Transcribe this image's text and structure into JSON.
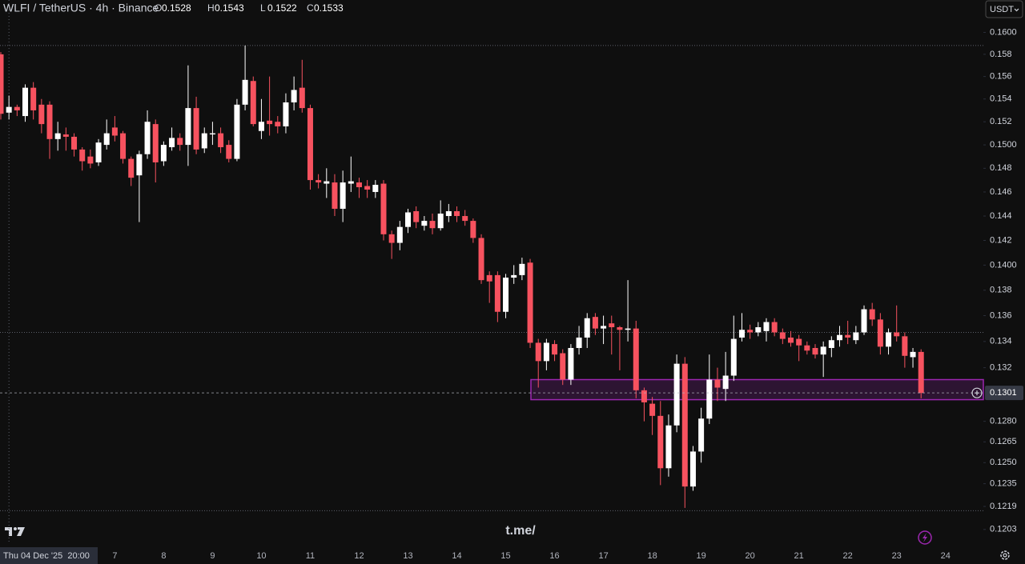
{
  "chart_data": {
    "type": "candlestick",
    "title": "WLFI / TetherUS · 4h · Binance",
    "ohlc_legend": {
      "labels": [
        "O",
        "H",
        "L",
        "C"
      ],
      "values": [
        0.1528,
        0.1543,
        0.1522,
        0.1533
      ]
    },
    "currency_button": "USDT",
    "watermark": "t.me/",
    "log": true,
    "grid": false,
    "up_color": "#ffffff",
    "down_color": "#f7525f",
    "categories": [
      null,
      "Thu 04 Dec '25  20:00",
      null,
      null,
      null,
      null,
      null,
      null,
      null,
      null,
      null,
      null,
      null,
      null,
      "7",
      null,
      null,
      null,
      null,
      null,
      "8",
      null,
      null,
      null,
      null,
      null,
      "9",
      null,
      null,
      null,
      null,
      null,
      "10",
      null,
      null,
      null,
      null,
      null,
      "11",
      null,
      null,
      null,
      null,
      null,
      "12",
      null,
      null,
      null,
      null,
      null,
      "13",
      null,
      null,
      null,
      null,
      null,
      "14",
      null,
      null,
      null,
      null,
      null,
      "15",
      null,
      null,
      null,
      null,
      null,
      "16",
      null,
      null,
      null,
      null,
      null,
      "17",
      null,
      null,
      null,
      null,
      null,
      "18",
      null,
      null,
      null,
      null,
      null,
      "19",
      null,
      null,
      null,
      null,
      null,
      "20",
      null,
      null,
      null,
      null,
      null,
      "21",
      null,
      null,
      null,
      null,
      null,
      "22",
      null,
      null,
      null,
      null,
      null,
      "23",
      null,
      null,
      null,
      null,
      null,
      "24"
    ],
    "open": [
      0.158,
      0.1528,
      0.1533,
      0.1525,
      0.155,
      0.1535,
      0.1535,
      0.1505,
      0.1509,
      0.1507,
      0.1496,
      0.149,
      0.1485,
      0.15,
      0.1515,
      0.151,
      0.1488,
      0.1474,
      0.1492,
      0.1518,
      0.1486,
      0.1498,
      0.1506,
      0.15,
      0.1532,
      0.1497,
      0.1509,
      0.151,
      0.15,
      0.1488,
      0.1535,
      0.1556,
      0.1512,
      0.1521,
      0.152,
      0.1516,
      0.1537,
      0.155,
      0.1532,
      0.147,
      0.1467,
      0.1468,
      0.1446,
      0.1467,
      0.1468,
      0.1465,
      0.146,
      0.1467,
      0.1425,
      0.1418,
      0.1431,
      0.1444,
      0.1432,
      0.1436,
      0.143,
      0.144,
      0.1444,
      0.144,
      0.1436,
      0.1422,
      0.1392,
      0.1392,
      0.1363,
      0.139,
      0.1392,
      0.1402,
      0.1339,
      0.1325,
      0.1338,
      0.1331,
      0.1311,
      0.1335,
      0.1343,
      0.1359,
      0.135,
      0.1354,
      0.1351,
      0.1349,
      0.135,
      0.1303,
      0.1293,
      0.1284,
      0.1246,
      0.1277,
      0.1323,
      0.1233,
      0.1258,
      0.1282,
      0.1311,
      0.1304,
      0.1314,
      0.1343,
      0.1349,
      0.1347,
      0.1348,
      0.1355,
      0.1347,
      0.1343,
      0.1342,
      0.1337,
      0.1335,
      0.133,
      0.1335,
      0.1341,
      0.1345,
      0.1341,
      0.1347,
      0.1365,
      0.1357,
      0.1336,
      0.1347,
      0.1344,
      0.1328,
      0.1332,
      null,
      null,
      null
    ],
    "high": [
      0.1582,
      0.1543,
      0.1535,
      0.1553,
      0.1555,
      0.154,
      0.1538,
      0.152,
      0.1515,
      0.151,
      0.1498,
      0.1496,
      0.1505,
      0.1522,
      0.1525,
      0.1512,
      0.149,
      0.1495,
      0.153,
      0.1522,
      0.1503,
      0.1515,
      0.151,
      0.157,
      0.1542,
      0.1515,
      0.152,
      0.1515,
      0.1504,
      0.154,
      0.1588,
      0.156,
      0.154,
      0.156,
      0.1525,
      0.1545,
      0.156,
      0.1575,
      0.1535,
      0.1475,
      0.148,
      0.1475,
      0.1478,
      0.149,
      0.1472,
      0.147,
      0.147,
      0.147,
      0.1428,
      0.1436,
      0.1446,
      0.1448,
      0.144,
      0.1442,
      0.1453,
      0.145,
      0.1448,
      0.1445,
      0.1438,
      0.1425,
      0.1395,
      0.1395,
      0.1393,
      0.14,
      0.1406,
      0.1405,
      0.1342,
      0.1342,
      0.1341,
      0.1334,
      0.1338,
      0.1352,
      0.1362,
      0.1362,
      0.136,
      0.136,
      0.1352,
      0.1388,
      0.1356,
      0.1305,
      0.1298,
      0.1295,
      0.1285,
      0.133,
      0.1328,
      0.1262,
      0.129,
      0.133,
      0.132,
      0.1332,
      0.136,
      0.1362,
      0.1353,
      0.1355,
      0.1358,
      0.1358,
      0.135,
      0.1348,
      0.1345,
      0.134,
      0.1338,
      0.134,
      0.1344,
      0.1352,
      0.1356,
      0.1352,
      0.1368,
      0.137,
      0.1362,
      0.135,
      0.1368,
      0.1347,
      0.1335,
      0.1334,
      null,
      null,
      null
    ],
    "low": [
      0.1522,
      0.1522,
      0.1525,
      0.152,
      0.1522,
      0.151,
      0.1488,
      0.1495,
      0.1495,
      0.149,
      0.1478,
      0.148,
      0.1482,
      0.1496,
      0.1503,
      0.1484,
      0.1465,
      0.1435,
      0.1488,
      0.1468,
      0.1482,
      0.1495,
      0.1495,
      0.1482,
      0.1492,
      0.1493,
      0.15,
      0.1493,
      0.1485,
      0.1486,
      0.153,
      0.1516,
      0.1505,
      0.1508,
      0.151,
      0.151,
      0.153,
      0.1528,
      0.1462,
      0.1463,
      0.1455,
      0.144,
      0.1435,
      0.146,
      0.1455,
      0.1455,
      0.1455,
      0.142,
      0.1405,
      0.1412,
      0.1426,
      0.143,
      0.1428,
      0.1425,
      0.1428,
      0.1435,
      0.1435,
      0.1432,
      0.1418,
      0.1385,
      0.137,
      0.1355,
      0.1358,
      0.1385,
      0.1388,
      0.1335,
      0.1305,
      0.1318,
      0.1325,
      0.1307,
      0.1307,
      0.133,
      0.1335,
      0.1345,
      0.1338,
      0.133,
      0.1318,
      0.134,
      0.1297,
      0.128,
      0.127,
      0.1234,
      0.124,
      0.1272,
      0.1218,
      0.123,
      0.125,
      0.1278,
      0.1295,
      0.1295,
      0.131,
      0.134,
      0.1342,
      0.1344,
      0.134,
      0.1344,
      0.1338,
      0.1336,
      0.1325,
      0.133,
      0.1327,
      0.1313,
      0.1328,
      0.1336,
      0.1338,
      0.1338,
      0.1345,
      0.1352,
      0.133,
      0.133,
      0.134,
      0.132,
      0.132,
      0.1297,
      null,
      null,
      null
    ],
    "close": [
      0.1527,
      0.1533,
      0.153,
      0.155,
      0.153,
      0.1518,
      0.1505,
      0.151,
      0.1507,
      0.1496,
      0.1486,
      0.1484,
      0.1502,
      0.151,
      0.1508,
      0.1488,
      0.1472,
      0.1492,
      0.152,
      0.1485,
      0.15,
      0.1506,
      0.15,
      0.1532,
      0.1496,
      0.151,
      0.151,
      0.1498,
      0.1488,
      0.1535,
      0.1557,
      0.1518,
      0.152,
      0.1518,
      0.1516,
      0.1537,
      0.1548,
      0.1532,
      0.147,
      0.1468,
      0.1469,
      0.1446,
      0.1468,
      0.1469,
      0.1464,
      0.1462,
      0.1466,
      0.1425,
      0.1418,
      0.1431,
      0.1443,
      0.1435,
      0.1436,
      0.143,
      0.1442,
      0.1444,
      0.144,
      0.1436,
      0.1422,
      0.1388,
      0.1387,
      0.1363,
      0.139,
      0.1392,
      0.1401,
      0.1339,
      0.1325,
      0.1339,
      0.133,
      0.1311,
      0.1335,
      0.1343,
      0.1358,
      0.135,
      0.1352,
      0.1351,
      0.1349,
      0.135,
      0.1303,
      0.1294,
      0.1284,
      0.1246,
      0.1277,
      0.1323,
      0.1233,
      0.1258,
      0.1282,
      0.1311,
      0.1305,
      0.1314,
      0.1342,
      0.1349,
      0.1347,
      0.1351,
      0.1355,
      0.1347,
      0.1342,
      0.1339,
      0.1337,
      0.1333,
      0.133,
      0.1336,
      0.1341,
      0.1345,
      0.1343,
      0.1347,
      0.1365,
      0.1357,
      0.1336,
      0.1347,
      0.1344,
      0.1329,
      0.1332,
      0.1301,
      null,
      null,
      null
    ],
    "ylim": [
      0.1193,
      0.163
    ],
    "yticks": [
      {
        "value": 0.16,
        "label": "0.1600"
      },
      0.158,
      0.156,
      0.154,
      0.152,
      {
        "value": 0.15,
        "label": "0.1500"
      },
      0.148,
      0.146,
      0.144,
      0.142,
      {
        "value": 0.14,
        "label": "0.1400"
      },
      0.138,
      0.136,
      0.134,
      0.132,
      {
        "value": 0.128,
        "label": "0.1280"
      },
      0.1265,
      {
        "value": 0.125,
        "label": "0.1250"
      },
      0.1235,
      0.1219,
      0.1203
    ],
    "last_price": 0.1301,
    "levels": [
      0.1588,
      0.1347,
      0.1216
    ],
    "zone": {
      "high": 0.1311,
      "low": 0.1296,
      "color": "#9c27b0"
    }
  }
}
